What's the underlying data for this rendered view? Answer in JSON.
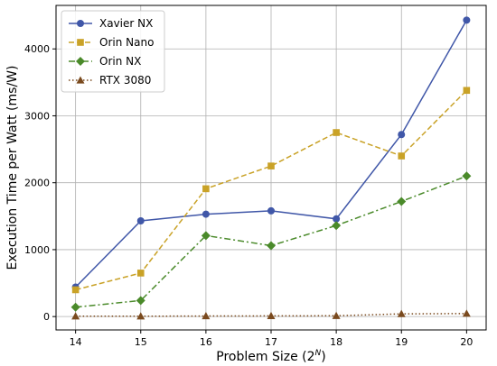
{
  "chart_data": {
    "type": "line",
    "title": "",
    "xlabel": "Problem Size (2",
    "xlabel_sup": "N",
    "xlabel_close": ")",
    "ylabel": "Execution Time per Watt (ms/W)",
    "x": [
      14,
      15,
      16,
      17,
      18,
      19,
      20
    ],
    "xticks": [
      "14",
      "15",
      "16",
      "17",
      "18",
      "19",
      "20"
    ],
    "yticks": [
      0,
      1000,
      2000,
      3000,
      4000
    ],
    "ytick_labels": [
      "0",
      "1000",
      "2000",
      "3000",
      "4000"
    ],
    "xlim": [
      13.7,
      20.3
    ],
    "ylim": [
      -200,
      4650
    ],
    "grid": true,
    "legend_position": "top-left",
    "series": [
      {
        "name": "Xavier NX",
        "color": "#4057a8",
        "marker": "circle",
        "linestyle": "solid",
        "values": [
          440,
          1430,
          1530,
          1580,
          1460,
          2720,
          4430
        ]
      },
      {
        "name": "Orin Nano",
        "color": "#c9a227",
        "marker": "square",
        "linestyle": "dashed",
        "values": [
          400,
          650,
          1910,
          2250,
          2750,
          2400,
          3380
        ]
      },
      {
        "name": "Orin NX",
        "color": "#4a8a2a",
        "marker": "diamond",
        "linestyle": "dashdot",
        "values": [
          140,
          240,
          1210,
          1060,
          1360,
          1720,
          2100
        ]
      },
      {
        "name": "RTX 3080",
        "color": "#7a4a1e",
        "marker": "triangle",
        "linestyle": "dotted",
        "values": [
          5,
          5,
          8,
          10,
          12,
          40,
          45
        ]
      }
    ]
  }
}
